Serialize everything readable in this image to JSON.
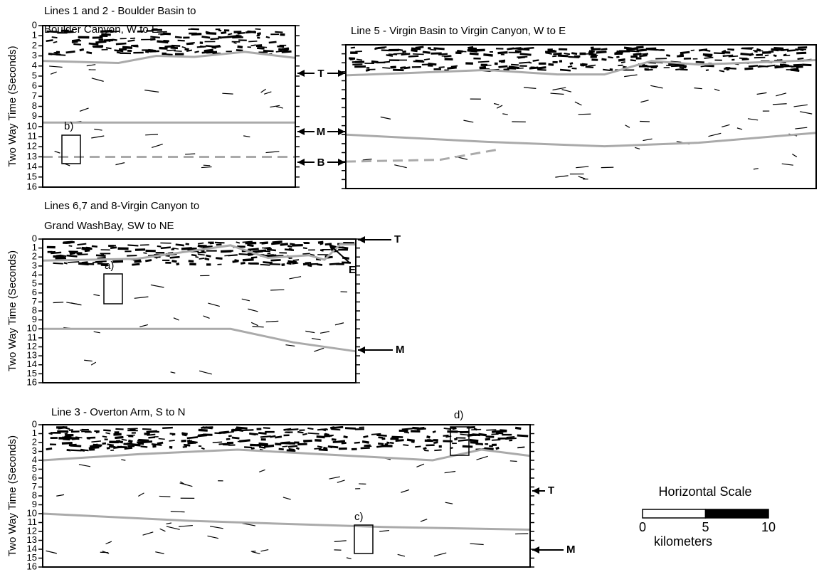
{
  "time_ticks": [
    0,
    1,
    2,
    3,
    4,
    5,
    6,
    7,
    8,
    9,
    10,
    11,
    12,
    13,
    14,
    15,
    16
  ],
  "y_axis_label": "Two Way Time (Seconds)",
  "panels": [
    {
      "title_lines": [
        "Lines 1 and 2 - Boulder Basin to",
        "Boulder Canyon, W to E"
      ],
      "markers": [
        "T",
        "M",
        "B"
      ],
      "boxes": [
        "b)"
      ]
    },
    {
      "title_lines": [
        "Line 5 - Virgin Basin to Virgin Canyon, W to E"
      ],
      "markers": [],
      "boxes": []
    },
    {
      "title_lines": [
        "Lines 6,7 and 8-Virgin Canyon to",
        "Grand WashBay, SW to NE"
      ],
      "markers": [
        "T",
        "E",
        "M"
      ],
      "boxes": [
        "a)"
      ]
    },
    {
      "title_lines": [
        "Line 3 - Overton Arm, S to N"
      ],
      "markers": [
        "T",
        "M"
      ],
      "boxes": [
        "c)",
        "d)"
      ]
    }
  ],
  "scale": {
    "title": "Horizontal Scale",
    "ticks": [
      0,
      5,
      10
    ],
    "unit": "kilometers"
  }
}
